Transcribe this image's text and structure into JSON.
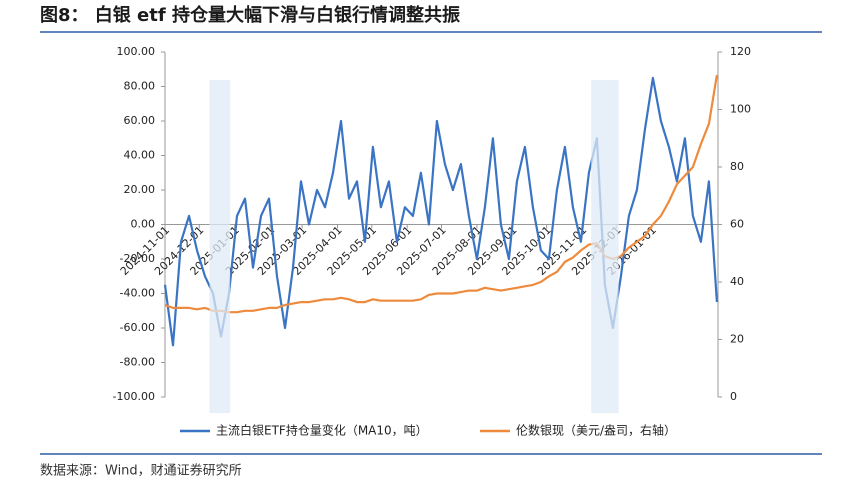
{
  "title": "图8： 白银 etf 持仓量大幅下滑与白银行情调整共振",
  "source": "数据来源：Wind，财通证券研究所",
  "chart_data": {
    "type": "line",
    "x": [
      "2024-11-01",
      "2024-11-08",
      "2024-11-15",
      "2024-11-22",
      "2024-11-29",
      "2024-12-06",
      "2024-12-13",
      "2024-12-20",
      "2024-12-27",
      "2025-01-03",
      "2025-01-10",
      "2025-01-17",
      "2025-01-24",
      "2025-01-31",
      "2025-02-07",
      "2025-02-14",
      "2025-02-21",
      "2025-02-28",
      "2025-03-07",
      "2025-03-14",
      "2025-03-21",
      "2025-03-28",
      "2025-04-04",
      "2025-04-11",
      "2025-04-18",
      "2025-04-25",
      "2025-05-02",
      "2025-05-09",
      "2025-05-16",
      "2025-05-23",
      "2025-05-30",
      "2025-06-06",
      "2025-06-13",
      "2025-06-20",
      "2025-06-27",
      "2025-07-04",
      "2025-07-11",
      "2025-07-18",
      "2025-07-25",
      "2025-08-01",
      "2025-08-08",
      "2025-08-15",
      "2025-08-22",
      "2025-08-29",
      "2025-09-05",
      "2025-09-12",
      "2025-09-19",
      "2025-09-26",
      "2025-10-03",
      "2025-10-10",
      "2025-10-17",
      "2025-10-24",
      "2025-10-31",
      "2025-11-07",
      "2025-11-14",
      "2025-11-21",
      "2025-11-28",
      "2025-12-05",
      "2025-12-12",
      "2025-12-19",
      "2025-12-26",
      "2026-01-02",
      "2026-01-09",
      "2026-01-16",
      "2026-01-23",
      "2026-01-30",
      "2026-02-06",
      "2026-02-13",
      "2026-02-20",
      "2026-02-27"
    ],
    "series": [
      {
        "name": "主流白银ETF持仓量变化（MA10，吨）",
        "color": "#3a74c4",
        "values": [
          -35,
          -70,
          -10,
          5,
          -15,
          -30,
          -40,
          -65,
          -40,
          5,
          15,
          -25,
          5,
          15,
          -30,
          -60,
          -25,
          25,
          0,
          20,
          10,
          30,
          60,
          15,
          25,
          -10,
          45,
          10,
          25,
          -10,
          10,
          5,
          30,
          0,
          60,
          35,
          20,
          35,
          5,
          -20,
          10,
          50,
          0,
          -20,
          25,
          45,
          10,
          -15,
          -20,
          20,
          45,
          10,
          -10,
          30,
          50,
          -35,
          -60,
          -30,
          5,
          20,
          55,
          85,
          60,
          45,
          25,
          50,
          5,
          -10,
          25,
          -45
        ]
      },
      {
        "name": "伦数银现（美元/盎司，右轴）",
        "color": "#ee8a3c",
        "axis": "y2",
        "values": [
          32,
          31,
          31,
          31,
          30.5,
          31,
          30,
          30,
          29.5,
          29.5,
          30,
          30,
          30.5,
          31,
          31,
          32,
          32.5,
          33,
          33,
          33.5,
          34,
          34,
          34.5,
          34,
          33,
          33,
          34,
          33.5,
          33.5,
          33.5,
          33.5,
          33.5,
          34,
          35.5,
          36,
          36,
          36,
          36.5,
          37,
          37,
          38,
          37.5,
          37,
          37.5,
          38,
          38.5,
          39,
          40,
          42,
          43.5,
          47,
          48.5,
          51,
          53,
          53.5,
          49,
          48,
          49,
          52,
          54,
          56,
          60,
          63,
          68,
          74,
          77,
          80,
          88,
          95,
          112
        ]
      }
    ],
    "xlim": [
      "2024-11-01",
      "2026-02-28"
    ],
    "xticks": [
      "2024-11-01",
      "2024-12-01",
      "2025-01-01",
      "2025-02-01",
      "2025-03-01",
      "2025-04-01",
      "2025-05-01",
      "2025-06-01",
      "2025-07-01",
      "2025-08-01",
      "2025-09-01",
      "2025-10-01",
      "2025-11-01",
      "2025-12-01",
      "2026-01-01"
    ],
    "ylim": [
      -100,
      100
    ],
    "yticks": [
      {
        "value": -100,
        "label": "-100.00"
      },
      {
        "value": -80,
        "label": "-80.00"
      },
      {
        "value": -60,
        "label": "-60.00"
      },
      {
        "value": -40,
        "label": "-40.00"
      },
      {
        "value": -20,
        "label": "-20.00"
      },
      {
        "value": 0,
        "label": "0.00"
      },
      {
        "value": 20,
        "label": "20.00"
      },
      {
        "value": 40,
        "label": "40.00"
      },
      {
        "value": 60,
        "label": "60.00"
      },
      {
        "value": 80,
        "label": "80.00"
      },
      {
        "value": 100,
        "label": "100.00"
      }
    ],
    "y2lim": [
      0,
      120
    ],
    "y2ticks": [
      0,
      20,
      40,
      60,
      80,
      100,
      120
    ],
    "shaded_ranges": [
      [
        "2024-12-10",
        "2024-12-28"
      ],
      [
        "2025-11-09",
        "2025-12-03"
      ]
    ],
    "shade_color": "#dfeaf6",
    "legend": "bottom"
  }
}
